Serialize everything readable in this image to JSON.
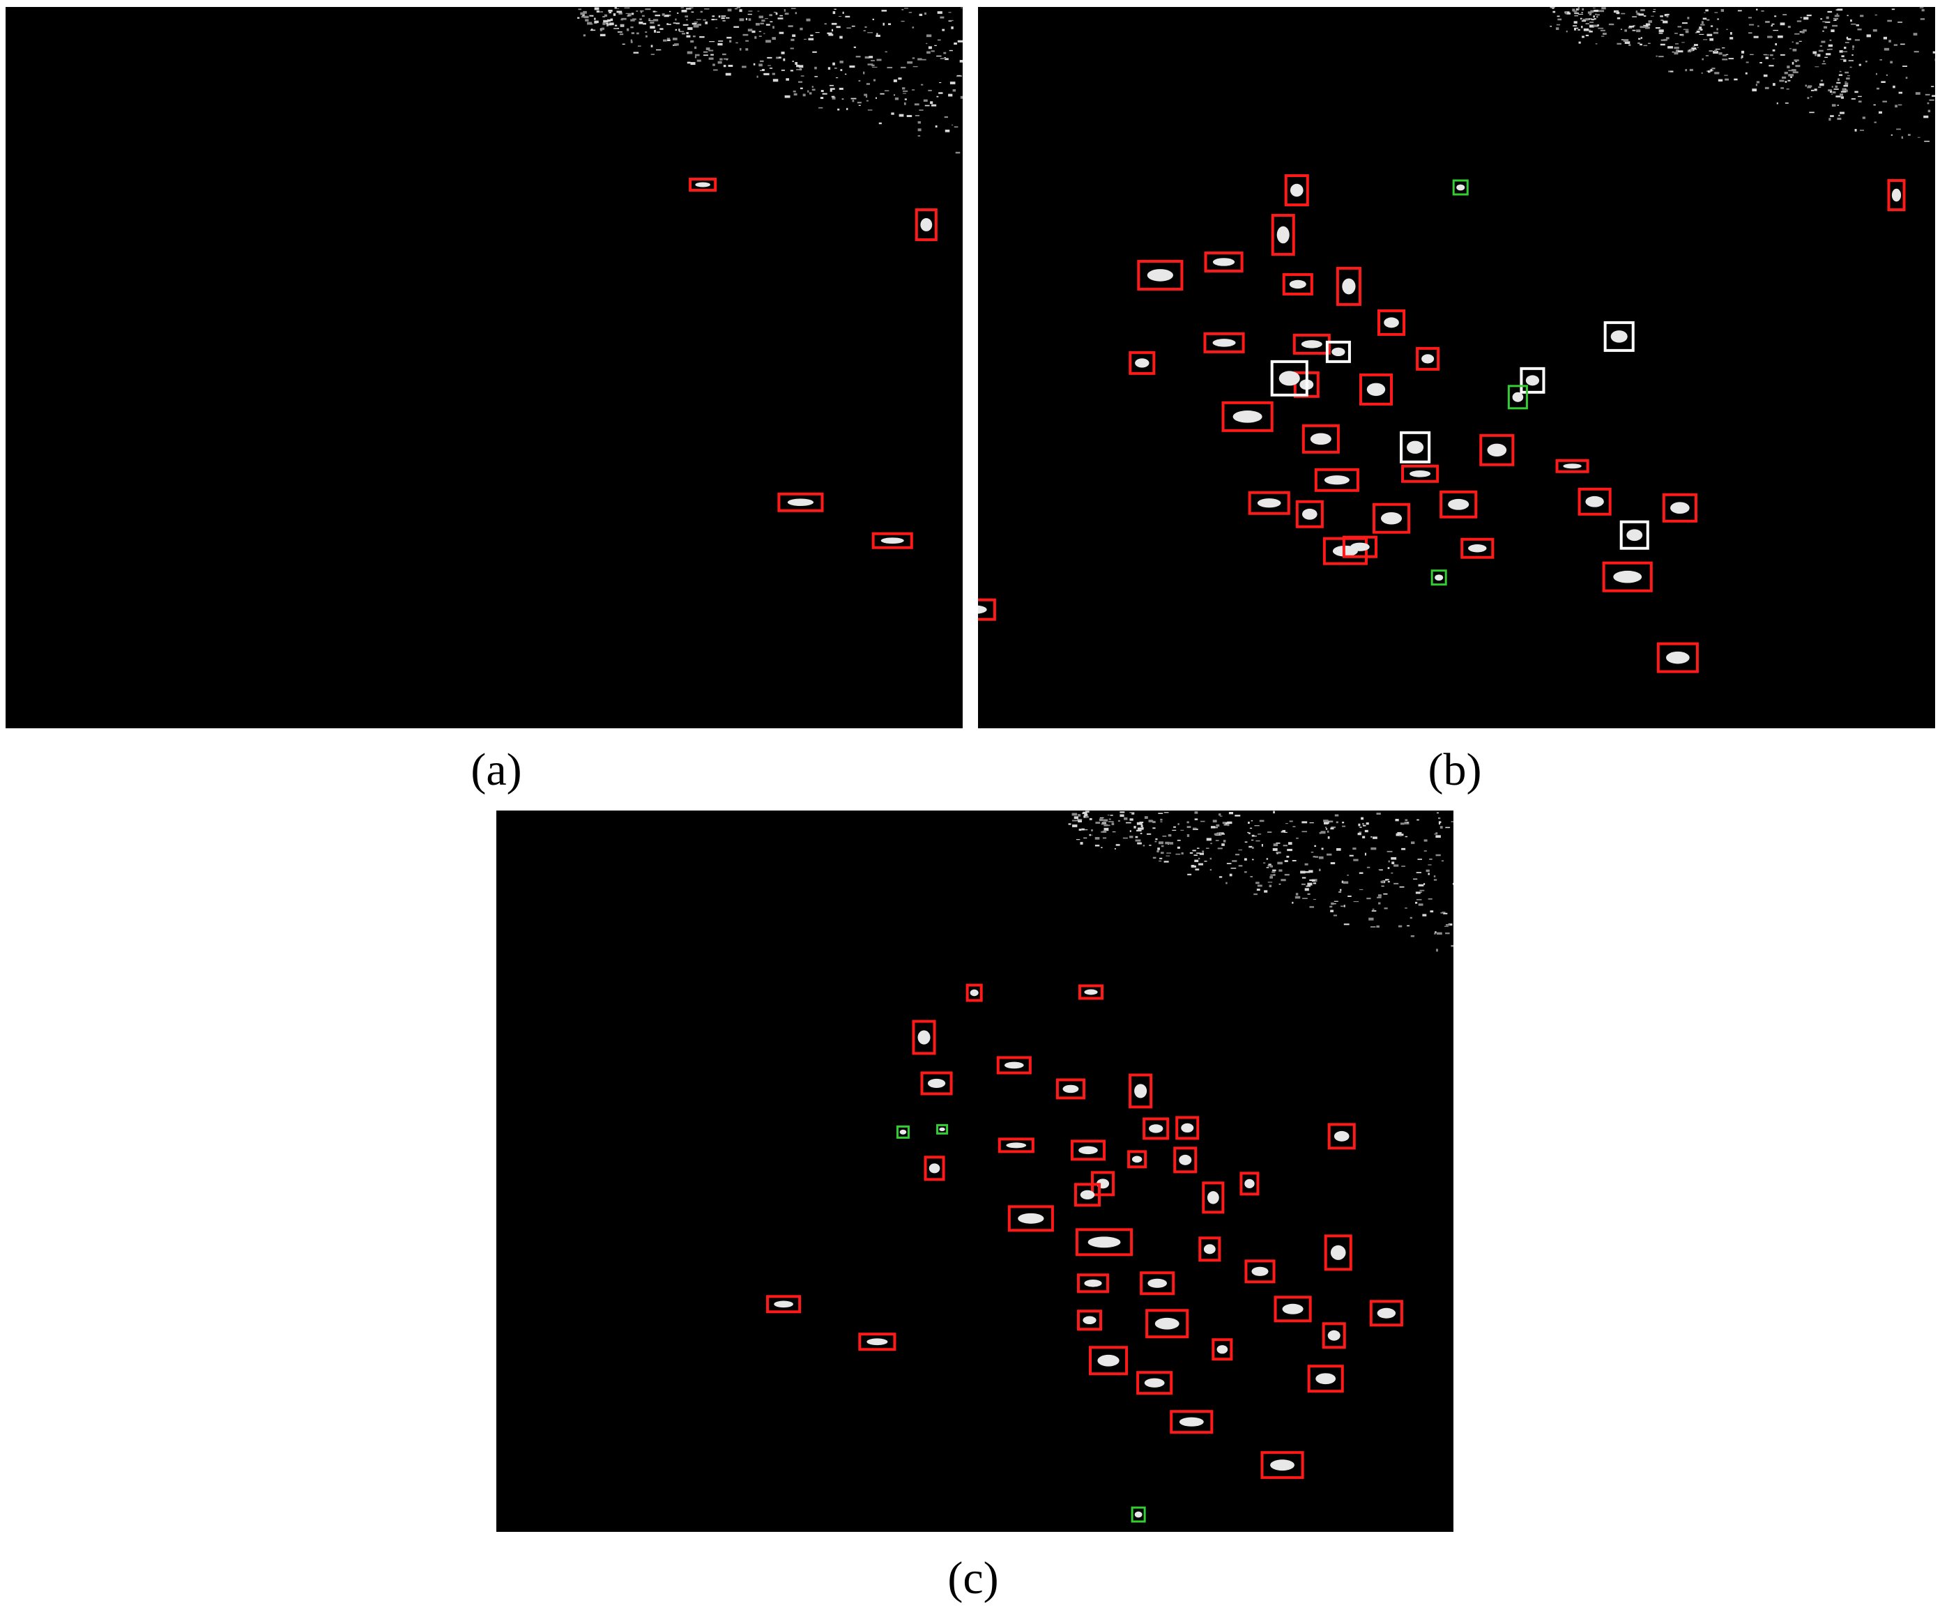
{
  "colors": {
    "detection_box": "#ff1a1a",
    "false_alarm_box": "#ffffff",
    "missed_box": "#33cc33",
    "background": "#000000",
    "target": "#e8e8e8"
  },
  "panels": [
    {
      "id": "a",
      "caption": "(a)",
      "boxes": [
        [
          "red",
          1387,
          265,
          20,
          20
        ],
        [
          "red",
          989,
          256,
          36,
          16
        ],
        [
          "red",
          2326,
          258,
          18,
          34
        ],
        [
          "red",
          1313,
          300,
          28,
          43
        ],
        [
          "red",
          1428,
          354,
          46,
          26
        ],
        [
          "red",
          1549,
          368,
          33,
          24
        ],
        [
          "red",
          1614,
          378,
          40,
          26
        ],
        [
          "red",
          1850,
          384,
          24,
          34
        ],
        [
          "red",
          1929,
          445,
          25,
          30
        ],
        [
          "red",
          2169,
          460,
          50,
          34
        ],
        [
          "red",
          1458,
          477,
          52,
          20
        ],
        [
          "red",
          1601,
          474,
          40,
          28
        ],
        [
          "red",
          1950,
          500,
          24,
          26
        ],
        [
          "red",
          1604,
          534,
          40,
          20
        ],
        [
          "red",
          1809,
          540,
          25,
          32
        ],
        [
          "red",
          1473,
          582,
          62,
          32
        ],
        [
          "red",
          1594,
          665,
          44,
          24
        ],
        [
          "red",
          1718,
          666,
          48,
          28
        ],
        [
          "red",
          1116,
          708,
          62,
          24
        ],
        [
          "red",
          1251,
          765,
          55,
          20
        ],
        [
          "red",
          1596,
          720,
          32,
          32
        ],
        [
          "red",
          1622,
          773,
          50,
          30
        ],
        [
          "red",
          2061,
          775,
          26,
          24
        ],
        [
          "red",
          2108,
          706,
          47,
          30
        ],
        [
          "red",
          1892,
          731,
          30,
          32
        ],
        [
          "red",
          2165,
          623,
          46,
          30
        ],
        [
          "red",
          2138,
          811,
          46,
          30
        ],
        [
          "red",
          1932,
          870,
          62,
          32
        ],
        [
          "red",
          2059,
          918,
          58,
          48
        ],
        [
          "white",
          1441,
          505,
          25,
          30
        ],
        [
          "white",
          1701,
          494,
          24,
          22
        ],
        [
          "white",
          1934,
          546,
          26,
          34
        ],
        [
          "white",
          2025,
          528,
          24,
          34
        ],
        [
          "white",
          1722,
          612,
          44,
          32
        ],
        [
          "white",
          1805,
          729,
          55,
          30
        ],
        [
          "white",
          1930,
          627,
          26,
          34
        ],
        [
          "white",
          2186,
          750,
          28,
          28
        ],
        [
          "white",
          1774,
          817,
          40,
          30
        ],
        [
          "green",
          2023,
          658,
          30,
          14
        ]
      ]
    },
    {
      "id": "b",
      "caption": "(b)",
      "boxes": [
        [
          "red",
          1843,
          251,
          31,
          42
        ],
        [
          "red",
          2706,
          258,
          22,
          42
        ],
        [
          "red",
          1824,
          308,
          30,
          56
        ],
        [
          "red",
          1728,
          362,
          52,
          26
        ],
        [
          "red",
          1632,
          374,
          62,
          40
        ],
        [
          "red",
          1840,
          393,
          40,
          28
        ],
        [
          "red",
          1917,
          384,
          32,
          52
        ],
        [
          "red",
          1976,
          445,
          36,
          34
        ],
        [
          "red",
          1855,
          480,
          50,
          26
        ],
        [
          "red",
          1727,
          478,
          55,
          26
        ],
        [
          "red",
          1620,
          505,
          34,
          30
        ],
        [
          "red",
          2031,
          499,
          30,
          30
        ],
        [
          "red",
          1856,
          534,
          33,
          34
        ],
        [
          "red",
          1950,
          537,
          44,
          42
        ],
        [
          "red",
          1753,
          577,
          70,
          40
        ],
        [
          "red",
          1868,
          610,
          50,
          38
        ],
        [
          "red",
          1886,
          673,
          60,
          30
        ],
        [
          "red",
          2010,
          668,
          50,
          22
        ],
        [
          "red",
          2231,
          660,
          44,
          16
        ],
        [
          "red",
          1859,
          719,
          36,
          36
        ],
        [
          "red",
          1898,
          772,
          60,
          36
        ],
        [
          "red",
          1969,
          723,
          50,
          40
        ],
        [
          "red",
          2095,
          773,
          44,
          26
        ],
        [
          "red",
          2122,
          624,
          46,
          42
        ],
        [
          "red",
          2065,
          705,
          50,
          36
        ],
        [
          "red",
          2263,
          701,
          44,
          36
        ],
        [
          "red",
          2298,
          807,
          68,
          40
        ],
        [
          "red",
          2384,
          709,
          46,
          38
        ],
        [
          "red",
          2376,
          923,
          56,
          40
        ],
        [
          "red",
          1791,
          706,
          56,
          30
        ],
        [
          "red",
          1926,
          770,
          46,
          28
        ],
        [
          "red",
          1370,
          860,
          56,
          28
        ],
        [
          "white",
          2300,
          462,
          40,
          40
        ],
        [
          "white",
          1902,
          490,
          32,
          28
        ],
        [
          "white",
          2180,
          528,
          32,
          34
        ],
        [
          "white",
          1823,
          518,
          50,
          48
        ],
        [
          "white",
          2008,
          620,
          40,
          42
        ],
        [
          "white",
          2323,
          748,
          38,
          38
        ],
        [
          "green",
          2083,
          258,
          20,
          20
        ],
        [
          "green",
          2162,
          553,
          26,
          32
        ],
        [
          "green",
          2052,
          818,
          20,
          20
        ]
      ]
    },
    {
      "id": "c",
      "caption": "(c)",
      "boxes": [
        [
          "red",
          1386,
          1416,
          20,
          22
        ],
        [
          "red",
          1547,
          1417,
          32,
          18
        ],
        [
          "red",
          2326,
          1416,
          24,
          36
        ],
        [
          "red",
          1309,
          1468,
          30,
          46
        ],
        [
          "red",
          1430,
          1520,
          46,
          22
        ],
        [
          "red",
          1515,
          1552,
          38,
          26
        ],
        [
          "red",
          1321,
          1542,
          42,
          30
        ],
        [
          "red",
          1619,
          1545,
          30,
          46
        ],
        [
          "red",
          1432,
          1637,
          48,
          18
        ],
        [
          "red",
          1536,
          1640,
          46,
          26
        ],
        [
          "red",
          1639,
          1608,
          34,
          28
        ],
        [
          "red",
          1683,
          1650,
          30,
          34
        ],
        [
          "red",
          1617,
          1655,
          24,
          22
        ],
        [
          "red",
          1724,
          1700,
          28,
          42
        ],
        [
          "red",
          1686,
          1606,
          30,
          30
        ],
        [
          "red",
          1778,
          1686,
          24,
          30
        ],
        [
          "red",
          1326,
          1663,
          26,
          32
        ],
        [
          "red",
          1565,
          1685,
          30,
          32
        ],
        [
          "red",
          1541,
          1702,
          34,
          30
        ],
        [
          "red",
          1446,
          1734,
          62,
          34
        ],
        [
          "red",
          1543,
          1767,
          78,
          36
        ],
        [
          "red",
          1719,
          1779,
          28,
          32
        ],
        [
          "red",
          1785,
          1812,
          40,
          30
        ],
        [
          "red",
          1904,
          1616,
          36,
          34
        ],
        [
          "red",
          1899,
          1776,
          36,
          48
        ],
        [
          "red",
          1545,
          1832,
          42,
          24
        ],
        [
          "red",
          1635,
          1829,
          46,
          30
        ],
        [
          "red",
          1545,
          1884,
          32,
          26
        ],
        [
          "red",
          1643,
          1883,
          58,
          38
        ],
        [
          "red",
          1827,
          1864,
          50,
          34
        ],
        [
          "red",
          1964,
          1870,
          44,
          34
        ],
        [
          "red",
          1896,
          1902,
          30,
          34
        ],
        [
          "red",
          1562,
          1936,
          52,
          38
        ],
        [
          "red",
          1630,
          1972,
          48,
          30
        ],
        [
          "red",
          1738,
          1925,
          26,
          28
        ],
        [
          "red",
          1875,
          1963,
          48,
          36
        ],
        [
          "red",
          1678,
          2028,
          58,
          30
        ],
        [
          "red",
          1808,
          2087,
          58,
          36
        ],
        [
          "red",
          1100,
          1863,
          46,
          22
        ],
        [
          "red",
          1232,
          1917,
          50,
          22
        ],
        [
          "green",
          1286,
          1619,
          16,
          16
        ],
        [
          "green",
          1343,
          1617,
          14,
          12
        ],
        [
          "green",
          1622,
          2166,
          18,
          20
        ]
      ]
    }
  ]
}
